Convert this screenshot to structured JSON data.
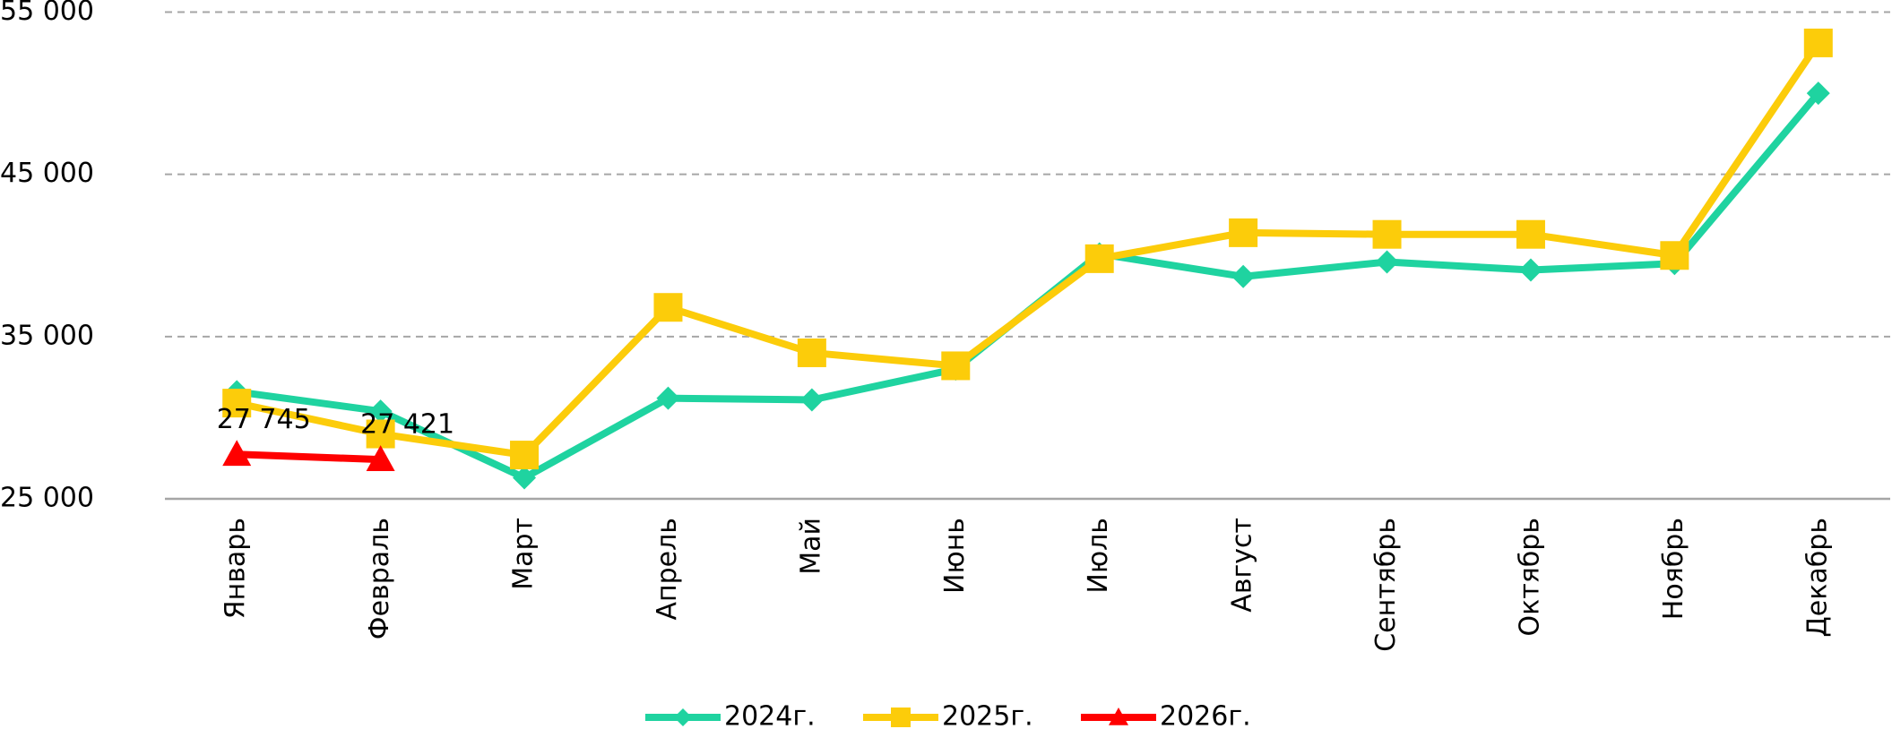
{
  "chart_data": {
    "type": "line",
    "categories": [
      "Январь",
      "Февраль",
      "Март",
      "Апрель",
      "Май",
      "Июнь",
      "Июль",
      "Август",
      "Сентябрь",
      "Октябрь",
      "Ноябрь",
      "Декабрь"
    ],
    "series": [
      {
        "name": "2024г.",
        "color": "#1fd3a0",
        "marker": "diamond",
        "values": [
          31600,
          30400,
          26300,
          31200,
          31100,
          33000,
          40100,
          38700,
          39600,
          39100,
          39500,
          50000
        ]
      },
      {
        "name": "2025г.",
        "color": "#fccc0a",
        "marker": "square",
        "values": [
          30900,
          29000,
          27700,
          36800,
          34000,
          33200,
          39800,
          41400,
          41300,
          41300,
          40000,
          53100
        ]
      },
      {
        "name": "2026г.",
        "color": "#ff0000",
        "marker": "triangle",
        "values": [
          27745,
          27421,
          null,
          null,
          null,
          null,
          null,
          null,
          null,
          null,
          null,
          null
        ],
        "value_labels": [
          "27 745",
          "27 421",
          null,
          null,
          null,
          null,
          null,
          null,
          null,
          null,
          null,
          null
        ]
      }
    ],
    "ylim": [
      25000,
      55000
    ],
    "yticks": [
      {
        "value": 25000,
        "label": "25 000"
      },
      {
        "value": 35000,
        "label": "35 000"
      },
      {
        "value": 45000,
        "label": "45 000"
      },
      {
        "value": 55000,
        "label": "55 000"
      }
    ],
    "grid": true,
    "legend": "bottom"
  }
}
